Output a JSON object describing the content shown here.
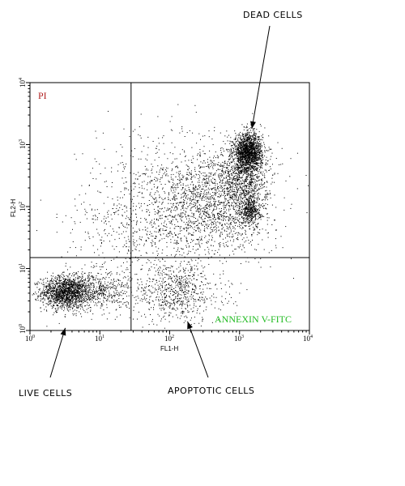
{
  "chart_data": {
    "type": "scatter",
    "scale": "log",
    "xlim": [
      1,
      10000
    ],
    "ylim": [
      1,
      10000
    ],
    "xlabel": "FL1-H",
    "ylabel": "FL2-H",
    "x_tick_labels": [
      {
        "base": "10",
        "exp": "0"
      },
      {
        "base": "10",
        "exp": "1"
      },
      {
        "base": "10",
        "exp": "2"
      },
      {
        "base": "10",
        "exp": "3"
      },
      {
        "base": "10",
        "exp": "4"
      }
    ],
    "y_tick_labels": [
      {
        "base": "10",
        "exp": "0"
      },
      {
        "base": "10",
        "exp": "1"
      },
      {
        "base": "10",
        "exp": "2"
      },
      {
        "base": "10",
        "exp": "3"
      },
      {
        "base": "10",
        "exp": "4"
      }
    ],
    "quadrant_gate": {
      "x": 28,
      "y": 15
    },
    "channel_labels": {
      "y_channel": "PI",
      "x_channel": "ANNEXIN V-FITC"
    },
    "populations": [
      {
        "name": "LIVE CELLS",
        "center": [
          3.2,
          4.2
        ]
      },
      {
        "name": "APOPTOTIC CELLS",
        "center": [
          180,
          4.5
        ]
      },
      {
        "name": "DEAD CELLS",
        "center": [
          1300,
          850
        ]
      }
    ],
    "annotations": [
      {
        "text": "DEAD CELLS",
        "points_to": [
          1500,
          1800
        ]
      },
      {
        "text": "LIVE CELLS",
        "points_to": [
          3.2,
          1.1
        ]
      },
      {
        "text": "APOPTOTIC CELLS",
        "points_to": [
          180,
          1.4
        ]
      }
    ],
    "colors": {
      "points": "#000000",
      "pi_label": "#b22222",
      "annexin_label": "#22bb22"
    }
  }
}
